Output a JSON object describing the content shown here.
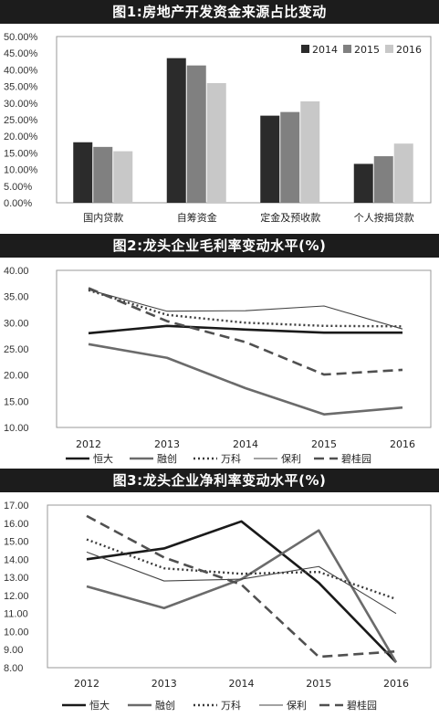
{
  "colors": {
    "title_bg": "#1c1c1c",
    "bar_2014": "#2b2b2b",
    "bar_2015": "#808080",
    "bar_2016": "#c8c8c8",
    "hengda": "#1a1a1a",
    "rongchuang": "#6b6b6b",
    "wanke": "#3a3a3a",
    "baoli": "#444444",
    "biguiyuan": "#505050"
  },
  "chart_data": [
    {
      "type": "bar",
      "title": "图1:房地产开发资金来源占比变动",
      "categories": [
        "国内贷款",
        "自筹资金",
        "定金及预收款",
        "个人按揭贷款"
      ],
      "series": [
        {
          "name": "2014",
          "values": [
            0.182,
            0.435,
            0.262,
            0.117
          ]
        },
        {
          "name": "2015",
          "values": [
            0.168,
            0.413,
            0.273,
            0.14
          ]
        },
        {
          "name": "2016",
          "values": [
            0.155,
            0.36,
            0.305,
            0.178
          ]
        }
      ],
      "ylim": [
        0,
        0.5
      ],
      "yticks": [
        "0.00%",
        "5.00%",
        "10.00%",
        "15.00%",
        "20.00%",
        "25.00%",
        "30.00%",
        "35.00%",
        "40.00%",
        "45.00%",
        "50.00%"
      ],
      "legend_position": "top-right",
      "grid": false
    },
    {
      "type": "line",
      "title": "图2:龙头企业毛利率变动水平(%)",
      "x": [
        "2012",
        "2013",
        "2014",
        "2015",
        "2016"
      ],
      "series": [
        {
          "name": "恒大",
          "style": "solid-thick",
          "values": [
            28.0,
            29.4,
            28.7,
            28.1,
            28.1
          ]
        },
        {
          "name": "融创",
          "style": "solid-thick-gray",
          "values": [
            25.9,
            23.3,
            17.5,
            12.5,
            13.8
          ]
        },
        {
          "name": "万科",
          "style": "dotted",
          "values": [
            36.2,
            31.5,
            30.0,
            29.4,
            29.3
          ]
        },
        {
          "name": "保利",
          "style": "solid-thin",
          "values": [
            36.3,
            32.2,
            32.3,
            33.2,
            28.8
          ]
        },
        {
          "name": "碧桂园",
          "style": "dashed",
          "values": [
            36.6,
            30.3,
            26.3,
            20.1,
            21.0
          ]
        }
      ],
      "ylim": [
        10,
        40
      ],
      "yticks": [
        "10.00",
        "15.00",
        "20.00",
        "25.00",
        "30.00",
        "35.00",
        "40.00"
      ],
      "legend_position": "bottom",
      "grid": false
    },
    {
      "type": "line",
      "title": "图3:龙头企业净利率变动水平(%)",
      "x": [
        "2012",
        "2013",
        "2014",
        "2015",
        "2016"
      ],
      "series": [
        {
          "name": "恒大",
          "style": "solid-thick",
          "values": [
            14.0,
            14.6,
            16.1,
            12.7,
            8.3
          ]
        },
        {
          "name": "融创",
          "style": "solid-thick-gray",
          "values": [
            12.5,
            11.3,
            12.9,
            15.6,
            8.3
          ]
        },
        {
          "name": "万科",
          "style": "dotted",
          "values": [
            15.1,
            13.5,
            13.2,
            13.3,
            11.8
          ]
        },
        {
          "name": "保利",
          "style": "solid-thin",
          "values": [
            14.4,
            12.8,
            12.9,
            13.6,
            11.0
          ]
        },
        {
          "name": "碧桂园",
          "style": "dashed",
          "values": [
            16.4,
            14.1,
            12.6,
            8.6,
            8.9
          ]
        }
      ],
      "ylim": [
        8,
        17
      ],
      "yticks": [
        "8.00",
        "9.00",
        "10.00",
        "11.00",
        "12.00",
        "13.00",
        "14.00",
        "15.00",
        "16.00",
        "17.00"
      ],
      "legend_position": "bottom",
      "grid": false
    }
  ]
}
